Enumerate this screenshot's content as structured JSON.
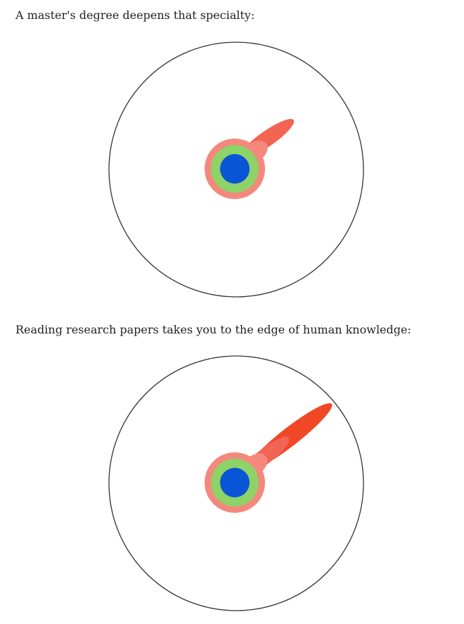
{
  "captions": {
    "masters": "A master's degree deepens that specialty:",
    "papers": "Reading research papers takes you to the edge of human knowledge:"
  },
  "colors": {
    "outline": "#333333",
    "inner_core": "#0a55d6",
    "green_ring": "#8dd368",
    "pink_ring": "#f4887c",
    "masters_specialty": "#f26454",
    "research_edge": "#f04726"
  },
  "figures": [
    {
      "name": "masters-knowledge-circle",
      "layers": [
        "inner_core",
        "green_ring",
        "pink_ring",
        "masters_specialty"
      ]
    },
    {
      "name": "research-knowledge-circle",
      "layers": [
        "inner_core",
        "green_ring",
        "pink_ring",
        "masters_specialty",
        "research_edge"
      ]
    }
  ]
}
